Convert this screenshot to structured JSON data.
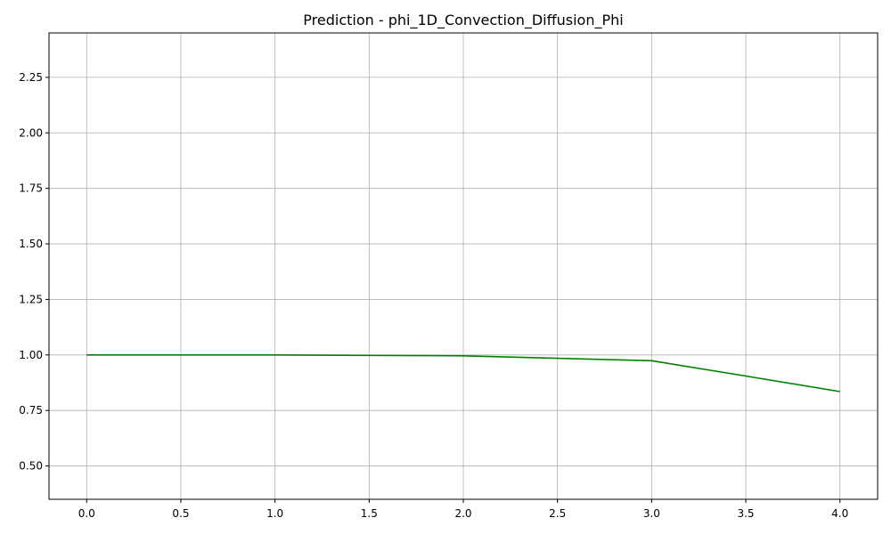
{
  "chart_data": {
    "type": "line",
    "title": "Prediction - phi_1D_Convection_Diffusion_Phi",
    "xlabel": "",
    "ylabel": "",
    "xlim": [
      -0.2,
      4.2
    ],
    "ylim": [
      0.35,
      2.45
    ],
    "grid": true,
    "x_ticks": [
      "0.0",
      "0.5",
      "1.0",
      "1.5",
      "2.0",
      "2.5",
      "3.0",
      "3.5",
      "4.0"
    ],
    "y_ticks": [
      "0.50",
      "0.75",
      "1.00",
      "1.25",
      "1.50",
      "1.75",
      "2.00",
      "2.25"
    ],
    "series": [
      {
        "color": "#008000",
        "x": [
          0,
          1,
          2,
          2.5,
          3,
          3.5,
          4
        ],
        "y": [
          1.0,
          1.0,
          0.996,
          0.985,
          0.974,
          0.905,
          0.835
        ]
      }
    ]
  }
}
